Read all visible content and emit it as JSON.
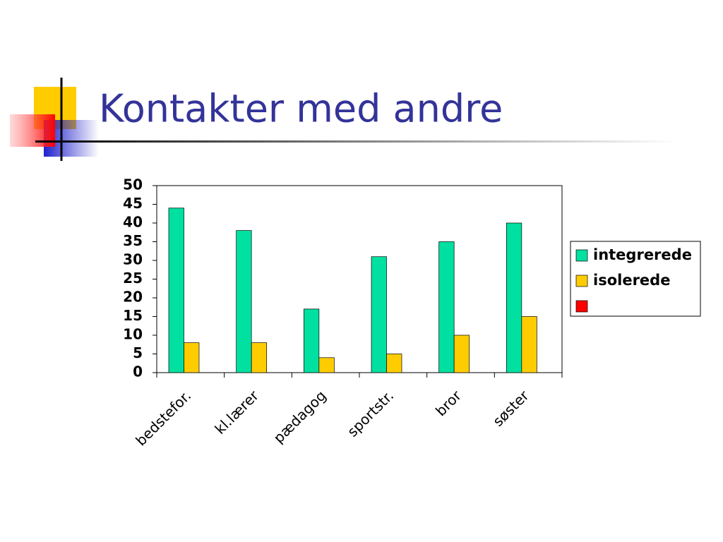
{
  "chart_data": {
    "type": "bar",
    "title": "Kontakter med andre",
    "categories": [
      "bedstefor.",
      "kl.lærer",
      "pædagog",
      "sportstr.",
      "bror",
      "søster"
    ],
    "series": [
      {
        "name": "integrerede",
        "color": "#00e0a0",
        "values": [
          44,
          38,
          17,
          31,
          35,
          40
        ]
      },
      {
        "name": "isolerede",
        "color": "#ffcc00",
        "values": [
          8,
          8,
          4,
          5,
          10,
          15
        ]
      },
      {
        "name": null,
        "color": "#ff0000",
        "values": [
          null,
          null,
          null,
          null,
          null,
          null
        ]
      }
    ],
    "ylim": [
      0,
      50
    ],
    "yticks": [
      0,
      5,
      10,
      15,
      20,
      25,
      30,
      35,
      40,
      45,
      50
    ],
    "grid": false
  }
}
